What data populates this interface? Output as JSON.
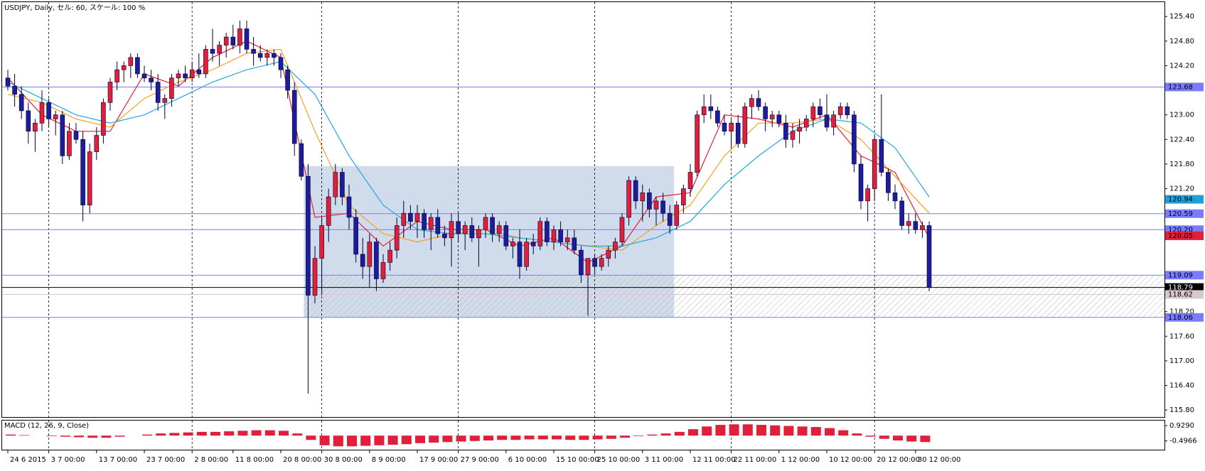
{
  "chart_data": {
    "type": "candlestick",
    "title": "USDJPY, Daily, セル: 60, スケール: 100 %",
    "up_color": "#e0203a",
    "down_color": "#1c1c9c",
    "ylim": [
      115.63,
      125.75
    ],
    "yticks": [
      {
        "value": 125.4,
        "label": "125.40"
      },
      {
        "value": 124.8,
        "label": "124.80"
      },
      {
        "value": 124.2,
        "label": "124.20"
      },
      {
        "value": 123,
        "label": "123.00"
      },
      {
        "value": 122.4,
        "label": "122.40"
      },
      {
        "value": 121.8,
        "label": "121.80"
      },
      {
        "value": 121.2,
        "label": "121.20"
      },
      {
        "value": 118.2,
        "label": "118.20"
      },
      {
        "value": 117.6,
        "label": "117.60"
      },
      {
        "value": 117,
        "label": "117.00"
      },
      {
        "value": 116.4,
        "label": "116.40"
      },
      {
        "value": 115.8,
        "label": "115.80"
      }
    ],
    "xticks": [
      {
        "value": 0,
        "label": "24 6 2015"
      },
      {
        "value": 6,
        "label": "3 7 00:00"
      },
      {
        "value": 13,
        "label": "13 7 00:00"
      },
      {
        "value": 20,
        "label": "23 7 00:00"
      },
      {
        "value": 27,
        "label": "2 8 00:00"
      },
      {
        "value": 33,
        "label": "11 8 00:00"
      },
      {
        "value": 40,
        "label": "20 8 00:00"
      },
      {
        "value": 46,
        "label": "30 8 00:00"
      },
      {
        "value": 53,
        "label": "8 9 00:00"
      },
      {
        "value": 60,
        "label": "17 9 00:00"
      },
      {
        "value": 66,
        "label": "27 9 00:00"
      },
      {
        "value": 73,
        "label": "6 10 00:00"
      },
      {
        "value": 80,
        "label": "15 10 00:00"
      },
      {
        "value": 86,
        "label": "25 10 00:00"
      },
      {
        "value": 93,
        "label": "3 11 00:00"
      },
      {
        "value": 100,
        "label": "12 11 00:00"
      },
      {
        "value": 106,
        "label": "22 11 00:00"
      },
      {
        "value": 113,
        "label": "1 12 00:00"
      },
      {
        "value": 120,
        "label": "10 12 00:00"
      },
      {
        "value": 127,
        "label": "20 12 00:00"
      },
      {
        "value": 133,
        "label": "30 12 00:00"
      }
    ],
    "candles": [
      [
        123.9,
        124.1,
        123.6,
        123.7
      ],
      [
        123.7,
        124.0,
        123.2,
        123.5
      ],
      [
        123.5,
        123.7,
        122.9,
        123.1
      ],
      [
        123.1,
        123.3,
        122.3,
        122.6
      ],
      [
        122.6,
        122.9,
        122.1,
        122.8
      ],
      [
        122.8,
        123.6,
        122.6,
        123.3
      ],
      [
        123.3,
        123.4,
        122.7,
        122.9
      ],
      [
        122.9,
        123.1,
        122.5,
        123.0
      ],
      [
        123.0,
        123.1,
        121.8,
        122.0
      ],
      [
        122.0,
        122.8,
        121.9,
        122.6
      ],
      [
        122.6,
        122.8,
        122.3,
        122.4
      ],
      [
        122.4,
        122.6,
        120.4,
        120.8
      ],
      [
        120.8,
        122.3,
        120.6,
        122.1
      ],
      [
        122.1,
        122.7,
        121.9,
        122.5
      ],
      [
        122.5,
        123.4,
        122.3,
        123.3
      ],
      [
        123.3,
        123.9,
        123.1,
        123.8
      ],
      [
        123.8,
        124.3,
        123.6,
        124.1
      ],
      [
        124.1,
        124.3,
        123.8,
        124.2
      ],
      [
        124.2,
        124.5,
        123.9,
        124.4
      ],
      [
        124.4,
        124.5,
        123.9,
        124.0
      ],
      [
        124.0,
        124.2,
        123.8,
        123.9
      ],
      [
        123.9,
        124.1,
        123.6,
        123.8
      ],
      [
        123.8,
        124.0,
        123.1,
        123.3
      ],
      [
        123.3,
        123.5,
        122.9,
        123.4
      ],
      [
        123.4,
        124.0,
        123.2,
        123.9
      ],
      [
        123.9,
        124.1,
        123.7,
        124.0
      ],
      [
        124.0,
        124.2,
        123.8,
        123.9
      ],
      [
        123.9,
        124.3,
        123.8,
        124.1
      ],
      [
        124.1,
        124.5,
        123.9,
        124.0
      ],
      [
        124.0,
        124.7,
        123.9,
        124.6
      ],
      [
        124.6,
        125.1,
        124.3,
        124.5
      ],
      [
        124.5,
        124.8,
        124.2,
        124.7
      ],
      [
        124.7,
        125.0,
        124.4,
        124.9
      ],
      [
        124.9,
        125.2,
        124.6,
        124.7
      ],
      [
        124.7,
        125.3,
        124.5,
        125.1
      ],
      [
        125.1,
        125.3,
        124.5,
        124.6
      ],
      [
        124.6,
        124.9,
        124.2,
        124.5
      ],
      [
        124.5,
        124.7,
        124.3,
        124.4
      ],
      [
        124.4,
        124.6,
        124.2,
        124.5
      ],
      [
        124.5,
        124.6,
        124.2,
        124.4
      ],
      [
        124.4,
        124.5,
        123.9,
        124.1
      ],
      [
        124.1,
        124.2,
        123.4,
        123.6
      ],
      [
        123.6,
        123.8,
        122.0,
        122.3
      ],
      [
        122.3,
        122.4,
        121.4,
        121.5
      ],
      [
        121.5,
        121.8,
        116.2,
        118.6
      ],
      [
        118.6,
        119.8,
        118.4,
        119.5
      ],
      [
        119.5,
        120.5,
        118.6,
        120.3
      ],
      [
        120.3,
        121.2,
        119.9,
        121.0
      ],
      [
        121.0,
        121.8,
        120.8,
        121.6
      ],
      [
        121.6,
        121.7,
        120.8,
        121.0
      ],
      [
        121.0,
        121.3,
        120.2,
        120.5
      ],
      [
        120.5,
        120.7,
        119.4,
        119.6
      ],
      [
        119.6,
        120.0,
        119.0,
        119.3
      ],
      [
        119.3,
        120.1,
        118.8,
        119.9
      ],
      [
        119.9,
        120.0,
        118.7,
        119.0
      ],
      [
        119.0,
        119.6,
        118.9,
        119.4
      ],
      [
        119.4,
        119.9,
        119.2,
        119.7
      ],
      [
        119.7,
        120.5,
        119.5,
        120.3
      ],
      [
        120.3,
        120.9,
        120.0,
        120.6
      ],
      [
        120.6,
        120.8,
        120.2,
        120.4
      ],
      [
        120.4,
        120.8,
        120.0,
        120.6
      ],
      [
        120.6,
        120.7,
        120.0,
        120.2
      ],
      [
        120.2,
        120.6,
        119.7,
        120.5
      ],
      [
        120.5,
        120.7,
        120.0,
        120.1
      ],
      [
        120.1,
        120.3,
        119.8,
        120.0
      ],
      [
        120.0,
        120.6,
        119.3,
        120.4
      ],
      [
        120.4,
        120.6,
        119.9,
        120.1
      ],
      [
        120.1,
        120.4,
        119.7,
        120.3
      ],
      [
        120.3,
        120.5,
        119.9,
        120.0
      ],
      [
        120.0,
        120.3,
        119.3,
        120.2
      ],
      [
        120.2,
        120.6,
        120.0,
        120.5
      ],
      [
        120.5,
        120.6,
        119.9,
        120.1
      ],
      [
        120.1,
        120.4,
        119.9,
        120.3
      ],
      [
        120.3,
        120.4,
        119.7,
        119.8
      ],
      [
        119.8,
        120.0,
        119.5,
        119.9
      ],
      [
        119.9,
        120.2,
        119.0,
        119.3
      ],
      [
        119.3,
        120.0,
        119.2,
        119.9
      ],
      [
        119.9,
        120.1,
        119.6,
        119.8
      ],
      [
        119.8,
        120.5,
        119.7,
        120.4
      ],
      [
        120.4,
        120.5,
        119.8,
        119.9
      ],
      [
        119.9,
        120.3,
        119.7,
        120.2
      ],
      [
        120.2,
        120.4,
        119.8,
        119.9
      ],
      [
        119.9,
        120.2,
        119.7,
        120.0
      ],
      [
        120.0,
        120.2,
        119.6,
        119.7
      ],
      [
        119.7,
        119.8,
        118.9,
        119.1
      ],
      [
        119.1,
        119.4,
        118.1,
        119.5
      ],
      [
        119.5,
        119.6,
        119.1,
        119.3
      ],
      [
        119.3,
        119.6,
        119.2,
        119.5
      ],
      [
        119.5,
        119.8,
        119.3,
        119.7
      ],
      [
        119.7,
        120.0,
        119.5,
        119.9
      ],
      [
        119.9,
        120.6,
        119.8,
        120.5
      ],
      [
        120.5,
        121.5,
        120.3,
        121.4
      ],
      [
        121.4,
        121.5,
        120.7,
        120.9
      ],
      [
        120.9,
        121.3,
        120.4,
        121.1
      ],
      [
        121.1,
        121.2,
        120.5,
        120.7
      ],
      [
        120.7,
        121.0,
        120.3,
        120.9
      ],
      [
        120.9,
        121.1,
        120.4,
        120.6
      ],
      [
        120.6,
        120.8,
        120.1,
        120.3
      ],
      [
        120.3,
        120.9,
        120.2,
        120.8
      ],
      [
        120.8,
        121.3,
        120.6,
        121.2
      ],
      [
        121.2,
        121.8,
        121.0,
        121.6
      ],
      [
        121.6,
        123.1,
        121.5,
        123.0
      ],
      [
        123.0,
        123.5,
        122.8,
        123.2
      ],
      [
        123.2,
        123.5,
        122.9,
        123.1
      ],
      [
        123.1,
        123.2,
        122.7,
        122.8
      ],
      [
        122.8,
        123.0,
        122.5,
        122.6
      ],
      [
        122.6,
        122.9,
        122.2,
        122.8
      ],
      [
        122.8,
        123.0,
        122.2,
        122.3
      ],
      [
        122.3,
        123.3,
        122.2,
        123.2
      ],
      [
        123.2,
        123.5,
        122.9,
        123.4
      ],
      [
        123.4,
        123.6,
        123.1,
        123.2
      ],
      [
        123.2,
        123.3,
        122.6,
        122.9
      ],
      [
        122.9,
        123.1,
        122.7,
        123.0
      ],
      [
        123.0,
        123.1,
        122.7,
        122.8
      ],
      [
        122.8,
        123.0,
        122.2,
        122.4
      ],
      [
        122.4,
        122.8,
        122.2,
        122.6
      ],
      [
        122.6,
        122.9,
        122.3,
        122.7
      ],
      [
        122.7,
        123.0,
        122.6,
        122.9
      ],
      [
        122.9,
        123.3,
        122.7,
        123.2
      ],
      [
        123.2,
        123.4,
        122.9,
        123.0
      ],
      [
        123.0,
        123.5,
        122.6,
        122.7
      ],
      [
        122.7,
        123.1,
        122.5,
        123.0
      ],
      [
        123.0,
        123.3,
        122.9,
        123.2
      ],
      [
        123.2,
        123.3,
        122.9,
        123.0
      ],
      [
        123.0,
        123.1,
        121.6,
        121.8
      ],
      [
        121.8,
        122.0,
        120.7,
        120.9
      ],
      [
        120.9,
        121.3,
        120.4,
        121.2
      ],
      [
        121.2,
        122.5,
        120.9,
        122.4
      ],
      [
        122.4,
        123.5,
        121.5,
        121.6
      ],
      [
        121.6,
        121.7,
        120.9,
        121.1
      ],
      [
        121.1,
        121.3,
        120.7,
        120.9
      ],
      [
        120.9,
        121.0,
        120.2,
        120.3
      ],
      [
        120.3,
        120.6,
        120.1,
        120.4
      ],
      [
        120.4,
        120.6,
        120.1,
        120.2
      ],
      [
        120.2,
        120.4,
        120.0,
        120.3
      ],
      [
        120.3,
        120.4,
        118.7,
        118.79
      ]
    ],
    "ma": [
      {
        "color": "#e0203a",
        "x": [
          0,
          5,
          10,
          15,
          20,
          25,
          30,
          35,
          40,
          45,
          50,
          55,
          60,
          65,
          70,
          75,
          80,
          85,
          90,
          95,
          100,
          105,
          110,
          115,
          120,
          125,
          130,
          135
        ],
        "values": [
          123.9,
          123.0,
          122.6,
          122.6,
          124.0,
          123.7,
          124.4,
          124.8,
          124.4,
          120.5,
          120.6,
          119.8,
          120.4,
          120.2,
          120.2,
          119.8,
          120.0,
          119.4,
          119.8,
          121.0,
          121.1,
          123.0,
          122.9,
          122.7,
          123.0,
          122.0,
          121.6,
          120.0
        ]
      },
      {
        "color": "#f5a020",
        "x": [
          0,
          5,
          10,
          15,
          20,
          25,
          30,
          35,
          40,
          45,
          50,
          55,
          60,
          65,
          70,
          75,
          80,
          85,
          90,
          95,
          100,
          105,
          110,
          115,
          120,
          125,
          130,
          135
        ],
        "values": [
          123.5,
          123.3,
          122.9,
          122.7,
          123.4,
          123.8,
          124.1,
          124.5,
          124.6,
          122.6,
          120.8,
          120.1,
          119.9,
          120.1,
          120.2,
          120.0,
          119.9,
          119.8,
          119.7,
          120.3,
          120.8,
          122.0,
          122.8,
          122.8,
          122.9,
          122.4,
          121.5,
          120.6
        ]
      },
      {
        "color": "#20a8e0",
        "x": [
          0,
          5,
          10,
          15,
          20,
          25,
          30,
          35,
          40,
          45,
          50,
          55,
          60,
          65,
          70,
          75,
          80,
          85,
          90,
          95,
          100,
          105,
          110,
          115,
          120,
          125,
          130,
          135
        ],
        "values": [
          123.8,
          123.4,
          123.0,
          122.8,
          123.0,
          123.4,
          123.8,
          124.1,
          124.3,
          123.5,
          122.0,
          120.8,
          120.2,
          120.1,
          120.1,
          120.0,
          119.9,
          119.8,
          119.8,
          120.0,
          120.4,
          121.3,
          122.0,
          122.6,
          122.9,
          122.8,
          122.2,
          121.0
        ]
      }
    ],
    "zone": {
      "x0": 44,
      "x1": 97,
      "y0": 118.06,
      "y1": 121.75,
      "color": "#cbd7ea"
    },
    "hatch": {
      "x0": 44,
      "y0": 118.06,
      "y1": 119.09
    },
    "levels": [
      {
        "value": 123.68,
        "label": "123.68",
        "color": "#7b7bff",
        "line": true
      },
      {
        "value": 120.94,
        "label": "120.94",
        "color": "#1ea0d8",
        "line": false
      },
      {
        "value": 120.59,
        "label": "120.59",
        "color": "#7b7bff",
        "line": true
      },
      {
        "value": 120.2,
        "label": "120.20",
        "color": "#7b7bff",
        "line": true
      },
      {
        "value": 120.05,
        "label": "120.05",
        "color": "#e0203a",
        "line": false
      },
      {
        "value": 119.09,
        "label": "119.09",
        "color": "#7b7bff",
        "line": true
      },
      {
        "value": 118.79,
        "label": "118.79",
        "color": "#000000",
        "line": true
      },
      {
        "value": 118.62,
        "label": "118.62",
        "color": "#d8c8cc",
        "line": true
      },
      {
        "value": 118.06,
        "label": "118.06",
        "color": "#7b7bff",
        "line": true
      }
    ],
    "macd": {
      "title": "MACD (12, 26, 9, Close)",
      "color": "#e0203a",
      "ylim": [
        -1.31,
        1.4
      ],
      "yticks": [
        {
          "value": 0.929,
          "label": "0.9290"
        },
        {
          "value": -0.4966,
          "label": "-0.4966"
        }
      ],
      "x": [
        0,
        2,
        4,
        6,
        8,
        10,
        12,
        14,
        16,
        18,
        20,
        22,
        24,
        26,
        28,
        30,
        32,
        34,
        36,
        38,
        40,
        42,
        44,
        46,
        48,
        50,
        52,
        54,
        56,
        58,
        60,
        62,
        64,
        66,
        68,
        70,
        72,
        74,
        76,
        78,
        80,
        82,
        84,
        86,
        88,
        90,
        92,
        94,
        96,
        98,
        100,
        102,
        104,
        106,
        108,
        110,
        112,
        114,
        116,
        118,
        120,
        122,
        124,
        126,
        128,
        130,
        132,
        134
      ],
      "values": [
        0.1,
        0.05,
        0.0,
        -0.05,
        -0.1,
        -0.15,
        -0.2,
        -0.2,
        -0.1,
        0.0,
        0.1,
        0.2,
        0.25,
        0.3,
        0.35,
        0.35,
        0.4,
        0.45,
        0.5,
        0.5,
        0.45,
        0.2,
        -0.4,
        -0.9,
        -1.0,
        -1.0,
        -0.95,
        -0.9,
        -0.85,
        -0.8,
        -0.7,
        -0.65,
        -0.6,
        -0.55,
        -0.5,
        -0.45,
        -0.4,
        -0.4,
        -0.35,
        -0.35,
        -0.35,
        -0.4,
        -0.4,
        -0.35,
        -0.3,
        -0.2,
        -0.05,
        0.1,
        0.2,
        0.35,
        0.6,
        0.85,
        1.0,
        1.05,
        1.05,
        1.0,
        0.95,
        0.9,
        0.85,
        0.8,
        0.7,
        0.5,
        0.2,
        -0.1,
        -0.3,
        -0.45,
        -0.55,
        -0.6
      ]
    }
  }
}
